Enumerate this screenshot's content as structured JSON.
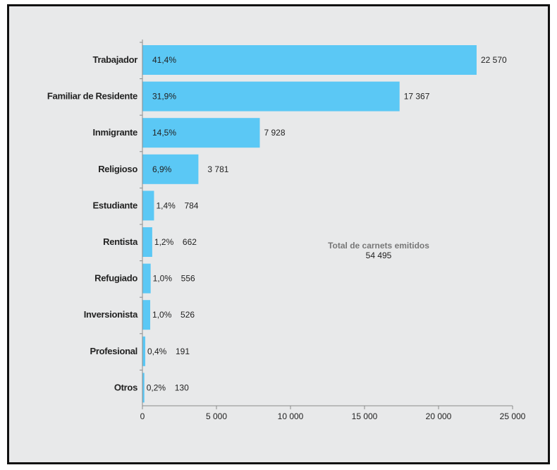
{
  "chart_data": {
    "type": "bar",
    "orientation": "horizontal",
    "categories": [
      "Trabajador",
      "Familiar de Residente",
      "Inmigrante",
      "Religioso",
      "Estudiante",
      "Rentista",
      "Refugiado",
      "Inversionista",
      "Profesional",
      "Otros"
    ],
    "values": [
      22570,
      17367,
      7928,
      3781,
      784,
      662,
      556,
      526,
      191,
      130
    ],
    "value_labels": [
      "22 570",
      "17 367",
      "7 928",
      "3 781",
      "784",
      "662",
      "556",
      "526",
      "191",
      "130"
    ],
    "percent_labels": [
      "41,4%",
      "31,9%",
      "14,5%",
      "6,9%",
      "1,4%",
      "1,2%",
      "1,0%",
      "1,0%",
      "0,4%",
      "0,2%"
    ],
    "xlim": [
      0,
      25000
    ],
    "xticks": [
      0,
      5000,
      10000,
      15000,
      20000,
      25000
    ],
    "xtick_labels": [
      "0",
      "5 000",
      "10 000",
      "15 000",
      "20 000",
      "25 000"
    ],
    "annotation": {
      "title": "Total de carnets emitidos",
      "value": "54 495"
    },
    "bar_color": "#5bc8f5",
    "background_color": "#e8e9ea",
    "grid": false,
    "legend": "none"
  }
}
